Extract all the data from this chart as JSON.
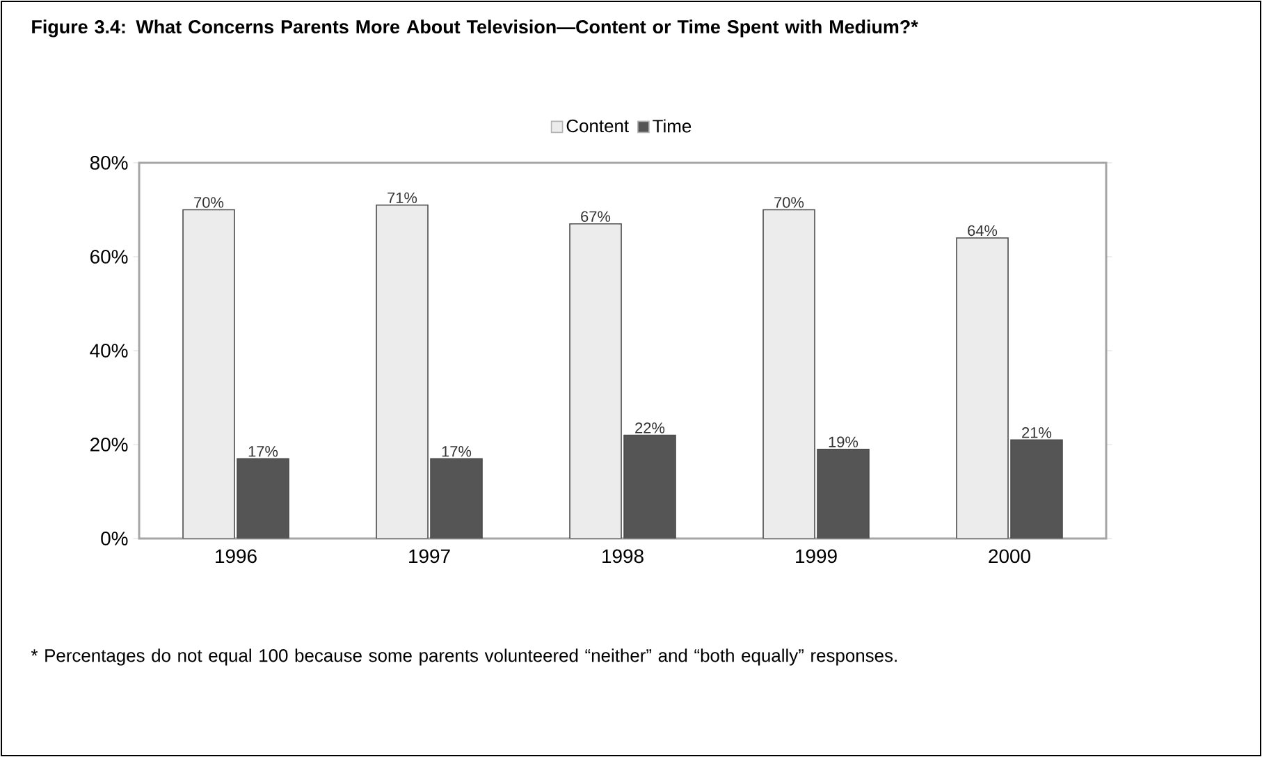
{
  "chart_data": {
    "type": "bar",
    "title": "Figure 3.4: What Concerns Parents More About Television—Content or Time Spent with Medium?*",
    "categories": [
      "1996",
      "1997",
      "1998",
      "1999",
      "2000"
    ],
    "series": [
      {
        "name": "Content",
        "color": "#ececec",
        "values": [
          70,
          71,
          67,
          70,
          64
        ],
        "value_labels": [
          "70%",
          "71%",
          "67%",
          "70%",
          "64%"
        ]
      },
      {
        "name": "Time",
        "color": "#555555",
        "values": [
          17,
          17,
          22,
          19,
          21
        ],
        "value_labels": [
          "17%",
          "17%",
          "22%",
          "19%",
          "21%"
        ]
      }
    ],
    "ylim": [
      0,
      80
    ],
    "yticks": [
      {
        "value": 0,
        "label": "0%"
      },
      {
        "value": 20,
        "label": "20%"
      },
      {
        "value": 40,
        "label": "40%"
      },
      {
        "value": 60,
        "label": "60%"
      },
      {
        "value": 80,
        "label": "80%"
      }
    ],
    "legend": "top",
    "annotations": [
      "* Percentages do not equal 100 because some parents volunteered “neither” and “both equally” responses."
    ]
  }
}
